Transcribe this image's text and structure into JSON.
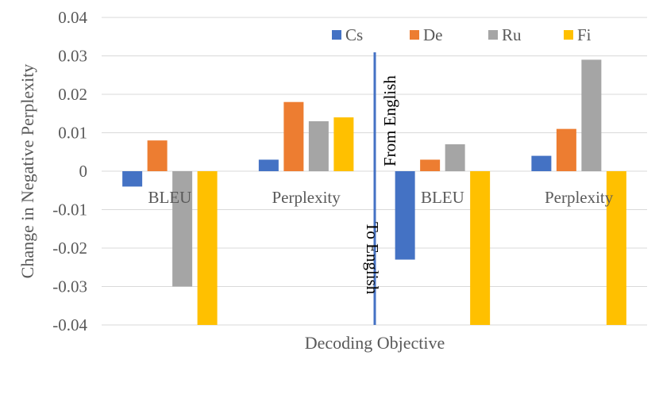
{
  "chart_data": {
    "type": "bar",
    "title": "",
    "xlabel": "Decoding Objective",
    "ylabel": "Change in Negative Perplexity",
    "ylim": [
      -0.04,
      0.04
    ],
    "yticks": [
      0.04,
      0.03,
      0.02,
      0.01,
      0,
      -0.01,
      -0.02,
      -0.03,
      -0.04
    ],
    "ytick_labels": [
      "0.04",
      "0.03",
      "0.02",
      "0.01",
      "0",
      "-0.01",
      "-0.02",
      "-0.03",
      "-0.04"
    ],
    "categories": [
      "BLEU",
      "Perplexity",
      "BLEU",
      "Perplexity"
    ],
    "series": [
      {
        "name": "Cs",
        "color": "#4472c4",
        "values": [
          -0.004,
          0.003,
          -0.023,
          0.004
        ]
      },
      {
        "name": "De",
        "color": "#ed7d31",
        "values": [
          0.008,
          0.018,
          0.003,
          0.011
        ]
      },
      {
        "name": "Ru",
        "color": "#a5a5a5",
        "values": [
          -0.03,
          0.013,
          0.007,
          0.029
        ]
      },
      {
        "name": "Fi",
        "color": "#ffc000",
        "values": [
          -0.04,
          0.014,
          -0.04,
          -0.04
        ]
      }
    ],
    "legend_position": "top-right",
    "annotations": {
      "divider_color": "#4472c4",
      "left_label": "To English",
      "right_label": "From English"
    }
  }
}
